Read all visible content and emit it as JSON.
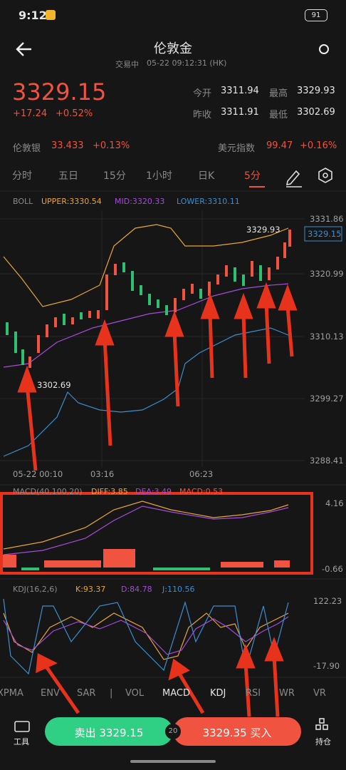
{
  "status_bar": {
    "time": "9:12",
    "battery": "91"
  },
  "header": {
    "title": "伦敦金",
    "status": "交易中",
    "timestamp": "05-22 09:12:31 (HK)"
  },
  "quote": {
    "price": "3329.15",
    "change": "+17.24",
    "change_pct": "+0.52%",
    "stats": [
      {
        "label": "今开",
        "value": "3311.94"
      },
      {
        "label": "最高",
        "value": "3329.93"
      },
      {
        "label": "昨收",
        "value": "3311.91"
      },
      {
        "label": "最低",
        "value": "3302.69"
      }
    ]
  },
  "related": [
    {
      "name": "伦敦银",
      "value": "33.433",
      "change": "+0.13%"
    },
    {
      "name": "美元指数",
      "value": "99.47",
      "change": "+0.16%"
    }
  ],
  "period_tabs": [
    "分时",
    "五日",
    "15分",
    "1小时",
    "日K",
    "5分"
  ],
  "main_chart": {
    "indicator": "BOLL",
    "upper": "UPPER:3330.54",
    "mid": "MID:3320.33",
    "lower": "LOWER:3310.11",
    "y_labels": [
      "3331.86",
      "3320.99",
      "3310.13",
      "3299.27",
      "3288.41"
    ],
    "current_price": "3329.15",
    "high_label": "3329.93",
    "low_label": "3302.69",
    "x_labels": [
      "05-22 00:10",
      "03:16",
      "06:23"
    ]
  },
  "macd": {
    "title": "MACD(40,100,20)",
    "diff": "DIFF:3.85",
    "dea": "DEA:3.49",
    "macd": "MACD:0.53",
    "y_labels": [
      "4.16",
      "-0.66"
    ]
  },
  "kdj": {
    "title": "KDJ(16,2,6)",
    "k": "K:93.37",
    "d": "D:84.78",
    "j": "J:110.56",
    "y_labels": [
      "122.23",
      "-17.90"
    ]
  },
  "indicator_tabs": [
    "XPMA",
    "ENV",
    "SAR",
    "|",
    "VOL",
    "MACD",
    "KDJ",
    "RSI",
    "WR",
    "VR"
  ],
  "bottom_bar": {
    "tools": "工具",
    "sell": "卖出 3329.15",
    "spread": "20",
    "buy": "3329.35 买入",
    "positions": "持仓"
  }
}
